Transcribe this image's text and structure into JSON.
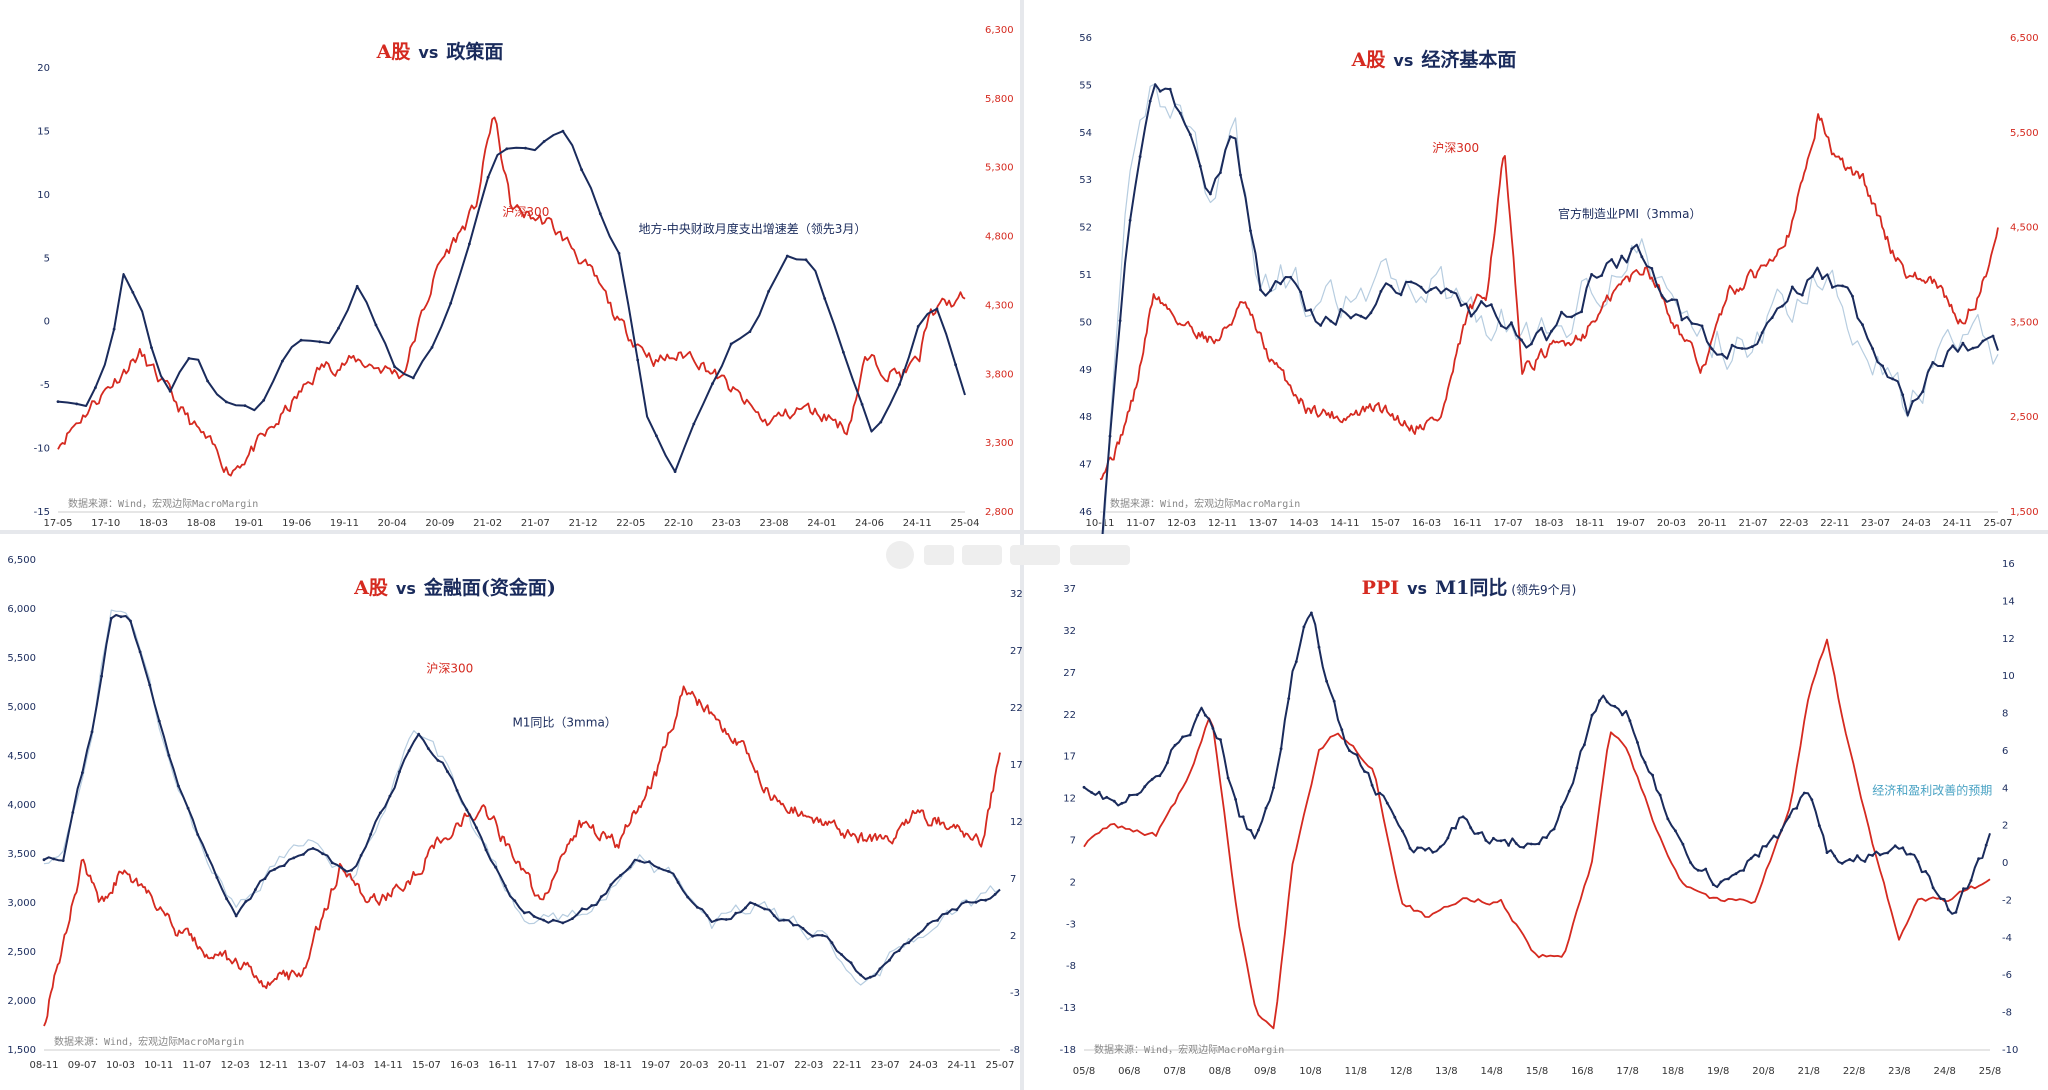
{
  "colors": {
    "red": "#d52a20",
    "navy": "#1a2b5c",
    "light": "#b7cde0",
    "teal": "#4aa3c4",
    "axis_left": "#1a2b5c",
    "axis_right": "#d52a20"
  },
  "panels": [
    {
      "id": "policy",
      "title_red": "A股",
      "title_vs": "vs",
      "title_blue": "政策面",
      "title_note": "",
      "source": "数据来源：Wind，宏观边际MacroMargin",
      "left_axis": {
        "ticks": [
          "20",
          "15",
          "10",
          "5",
          "0",
          "-5",
          "-10",
          "-15"
        ],
        "min": -15,
        "max": 23
      },
      "right_axis": {
        "ticks": [
          "6,300",
          "5,800",
          "5,300",
          "4,800",
          "4,300",
          "3,800",
          "3,300",
          "2,800"
        ],
        "min": 2800,
        "max": 6300
      },
      "x_ticks": [
        "17-05",
        "17-10",
        "18-03",
        "18-08",
        "19-01",
        "19-06",
        "19-11",
        "20-04",
        "20-09",
        "21-02",
        "21-07",
        "21-12",
        "22-05",
        "22-10",
        "23-03",
        "23-08",
        "24-01",
        "24-06",
        "24-11",
        "25-04"
      ],
      "annotations": [
        {
          "text": "沪深300",
          "color": "red",
          "xi": 0.49,
          "yv": 4950,
          "axis": "right"
        },
        {
          "text": "地方-中央财政月度支出增速差（领先3月）",
          "color": "navy",
          "xi": 0.64,
          "yv": 7,
          "axis": "left"
        }
      ],
      "series_labels": []
    },
    {
      "id": "economy",
      "title_red": "A股",
      "title_vs": "vs",
      "title_blue": "经济基本面",
      "title_note": "",
      "source": "数据来源：Wind，宏观边际MacroMargin",
      "left_axis": {
        "ticks": [
          "56",
          "55",
          "54",
          "53",
          "52",
          "51",
          "50",
          "49",
          "48",
          "47",
          "46"
        ],
        "min": 46,
        "max": 56
      },
      "right_axis": {
        "ticks": [
          "6,500",
          "5,500",
          "4,500",
          "3,500",
          "2,500",
          "1,500"
        ],
        "min": 1500,
        "max": 6500
      },
      "x_ticks": [
        "10-11",
        "11-07",
        "12-03",
        "12-11",
        "13-07",
        "14-03",
        "14-11",
        "15-07",
        "16-03",
        "16-11",
        "17-07",
        "18-03",
        "18-11",
        "19-07",
        "20-03",
        "20-11",
        "21-07",
        "22-03",
        "22-11",
        "23-07",
        "24-03",
        "24-11",
        "25-07"
      ],
      "annotations": [
        {
          "text": "沪深300",
          "color": "red",
          "xi": 0.37,
          "yv": 5300,
          "axis": "right"
        },
        {
          "text": "官方制造业PMI（3mma）",
          "color": "navy",
          "xi": 0.51,
          "yv": 52.2,
          "axis": "left"
        }
      ],
      "series_labels": []
    },
    {
      "id": "finance",
      "title_red": "A股",
      "title_vs": "vs",
      "title_blue": "金融面(资金面)",
      "title_note": "",
      "source": "数据来源：Wind，宏观边际MacroMargin",
      "left_axis": {
        "ticks": [
          "6,500",
          "6,000",
          "5,500",
          "5,000",
          "4,500",
          "4,000",
          "3,500",
          "3,000",
          "2,500",
          "2,000",
          "1,500"
        ],
        "min": 1500,
        "max": 6500
      },
      "right_axis": {
        "ticks": [
          "32",
          "27",
          "22",
          "17",
          "12",
          "7",
          "2",
          "-3",
          "-8"
        ],
        "min": -8,
        "max": 35
      },
      "x_ticks": [
        "08-11",
        "09-07",
        "10-03",
        "10-11",
        "11-07",
        "12-03",
        "12-11",
        "13-07",
        "14-03",
        "14-11",
        "15-07",
        "16-03",
        "16-11",
        "17-07",
        "18-03",
        "18-11",
        "19-07",
        "20-03",
        "20-11",
        "21-07",
        "22-03",
        "22-11",
        "23-07",
        "24-03",
        "24-11",
        "25-07"
      ],
      "annotations": [
        {
          "text": "沪深300",
          "color": "red",
          "xi": 0.4,
          "yv": 5350,
          "axis": "left"
        },
        {
          "text": "M1同比（3mma）",
          "color": "navy",
          "xi": 0.49,
          "yv": 4800,
          "axis": "left"
        }
      ],
      "series_labels": []
    },
    {
      "id": "ppi",
      "title_red": "PPI",
      "title_vs": "vs",
      "title_blue": "M1同比",
      "title_note": "(领先9个月)",
      "source": "数据来源：Wind，宏观边际MacroMargin",
      "left_axis": {
        "ticks": [
          "37",
          "32",
          "27",
          "22",
          "17",
          "12",
          "7",
          "2",
          "-3",
          "-8",
          "-13",
          "-18"
        ],
        "min": -18,
        "max": 40
      },
      "right_axis": {
        "ticks": [
          "16",
          "14",
          "12",
          "10",
          "8",
          "6",
          "4",
          "2",
          "0",
          "-2",
          "-4",
          "-6",
          "-8",
          "-10"
        ],
        "min": -10,
        "max": 16
      },
      "x_ticks": [
        "05/8",
        "06/8",
        "07/8",
        "08/8",
        "09/8",
        "10/8",
        "11/8",
        "12/8",
        "13/8",
        "14/8",
        "15/8",
        "16/8",
        "17/8",
        "18/8",
        "19/8",
        "20/8",
        "21/8",
        "22/8",
        "23/8",
        "24/8",
        "25/8"
      ],
      "annotations": [
        {
          "text": "经济和盈利改善的预期",
          "color": "teal",
          "xi": 0.87,
          "yv": 12.5,
          "axis": "left"
        }
      ],
      "series_labels": []
    }
  ]
}
